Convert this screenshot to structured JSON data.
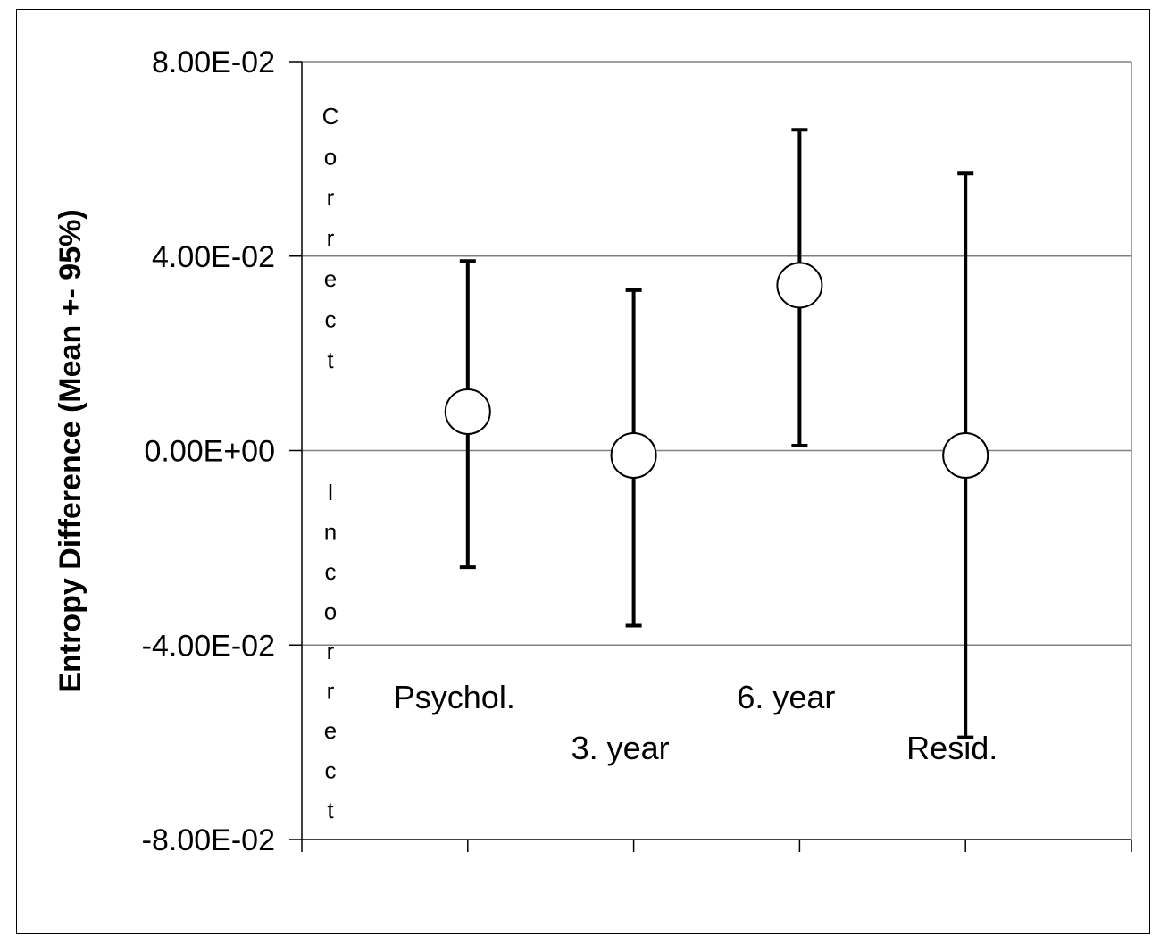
{
  "chart_data": {
    "type": "scatter",
    "title": "",
    "xlabel": "",
    "ylabel": "Entropy Difference (Mean +- 95%)",
    "ylim": [
      -0.08,
      0.08
    ],
    "yticks": [
      {
        "value": 0.08,
        "label": "8.00E-02"
      },
      {
        "value": 0.04,
        "label": "4.00E-02"
      },
      {
        "value": 0.0,
        "label": "0.00E+00"
      },
      {
        "value": -0.04,
        "label": "-4.00E-02"
      },
      {
        "value": -0.08,
        "label": "-8.00E-02"
      }
    ],
    "categories": [
      "Psychol.",
      "3. year",
      "6. year",
      "Resid."
    ],
    "category_label_row": [
      0,
      1,
      0,
      1
    ],
    "points": [
      {
        "category": "Psychol.",
        "mean": 0.008,
        "lower": -0.024,
        "upper": 0.039
      },
      {
        "category": "3. year",
        "mean": -0.001,
        "lower": -0.036,
        "upper": 0.033
      },
      {
        "category": "6. year",
        "mean": 0.034,
        "lower": 0.001,
        "upper": 0.066
      },
      {
        "category": "Resid.",
        "mean": -0.001,
        "lower": -0.059,
        "upper": 0.057
      }
    ],
    "gridlines": [
      0.04,
      0.0,
      -0.04
    ],
    "region_labels": {
      "upper": "Correct",
      "lower": "Incorrect"
    },
    "colors": {
      "line": "#000000",
      "marker_fill": "#ffffff",
      "grid": "#808080"
    }
  }
}
